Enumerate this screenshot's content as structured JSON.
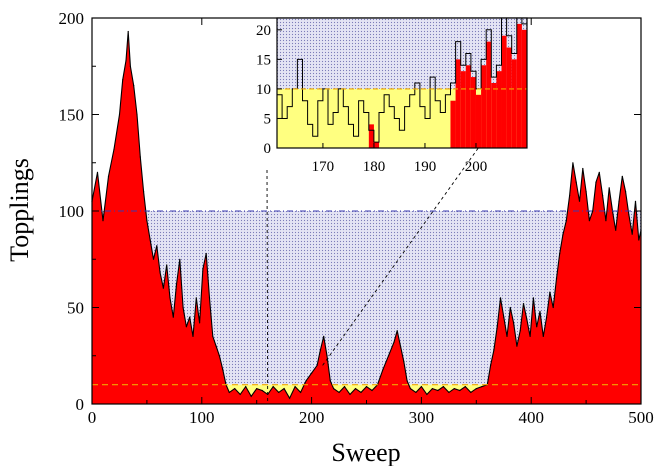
{
  "chart_data": [
    {
      "type": "area",
      "xlabel": "Sweep",
      "ylabel": "Topplings",
      "xlim": [
        0,
        500
      ],
      "ylim": [
        0,
        200
      ],
      "x_ticks": [
        0,
        100,
        200,
        300,
        400,
        500
      ],
      "y_ticks": [
        0,
        50,
        100,
        150,
        200
      ],
      "grid": false,
      "reference_lines": [
        {
          "y": 100,
          "style": "dash-dot",
          "color": "#3a3ab0"
        },
        {
          "y": 10,
          "style": "dashed",
          "color": "#f0a800"
        }
      ],
      "shaded_band": {
        "y_from": 10,
        "y_to": 100,
        "pattern": "dotted",
        "color": "#c8c8e6"
      },
      "low_band": {
        "y_from": 0,
        "y_to": 10,
        "color": "#ffff80"
      },
      "fill_color": "#ff0000",
      "line_color": "#000000",
      "envelope": [
        {
          "x": 0,
          "y": 105
        },
        {
          "x": 5,
          "y": 120
        },
        {
          "x": 10,
          "y": 95
        },
        {
          "x": 15,
          "y": 118
        },
        {
          "x": 20,
          "y": 132
        },
        {
          "x": 25,
          "y": 150
        },
        {
          "x": 28,
          "y": 168
        },
        {
          "x": 31,
          "y": 178
        },
        {
          "x": 33,
          "y": 193
        },
        {
          "x": 35,
          "y": 175
        },
        {
          "x": 38,
          "y": 165
        },
        {
          "x": 41,
          "y": 150
        },
        {
          "x": 44,
          "y": 128
        },
        {
          "x": 47,
          "y": 110
        },
        {
          "x": 50,
          "y": 95
        },
        {
          "x": 53,
          "y": 85
        },
        {
          "x": 56,
          "y": 75
        },
        {
          "x": 59,
          "y": 82
        },
        {
          "x": 62,
          "y": 68
        },
        {
          "x": 65,
          "y": 60
        },
        {
          "x": 68,
          "y": 72
        },
        {
          "x": 71,
          "y": 55
        },
        {
          "x": 74,
          "y": 45
        },
        {
          "x": 77,
          "y": 62
        },
        {
          "x": 80,
          "y": 75
        },
        {
          "x": 83,
          "y": 50
        },
        {
          "x": 86,
          "y": 40
        },
        {
          "x": 89,
          "y": 45
        },
        {
          "x": 92,
          "y": 35
        },
        {
          "x": 95,
          "y": 55
        },
        {
          "x": 98,
          "y": 42
        },
        {
          "x": 101,
          "y": 70
        },
        {
          "x": 104,
          "y": 78
        },
        {
          "x": 107,
          "y": 55
        },
        {
          "x": 110,
          "y": 35
        },
        {
          "x": 113,
          "y": 30
        },
        {
          "x": 116,
          "y": 25
        },
        {
          "x": 119,
          "y": 18
        },
        {
          "x": 122,
          "y": 10
        },
        {
          "x": 125,
          "y": 6
        },
        {
          "x": 130,
          "y": 8
        },
        {
          "x": 135,
          "y": 5
        },
        {
          "x": 140,
          "y": 9
        },
        {
          "x": 145,
          "y": 4
        },
        {
          "x": 150,
          "y": 8
        },
        {
          "x": 155,
          "y": 7
        },
        {
          "x": 160,
          "y": 5
        },
        {
          "x": 165,
          "y": 9
        },
        {
          "x": 170,
          "y": 6
        },
        {
          "x": 175,
          "y": 8
        },
        {
          "x": 180,
          "y": 3
        },
        {
          "x": 185,
          "y": 9
        },
        {
          "x": 190,
          "y": 6
        },
        {
          "x": 195,
          "y": 12
        },
        {
          "x": 200,
          "y": 16
        },
        {
          "x": 205,
          "y": 20
        },
        {
          "x": 208,
          "y": 28
        },
        {
          "x": 211,
          "y": 35
        },
        {
          "x": 214,
          "y": 25
        },
        {
          "x": 217,
          "y": 12
        },
        {
          "x": 220,
          "y": 8
        },
        {
          "x": 225,
          "y": 6
        },
        {
          "x": 230,
          "y": 9
        },
        {
          "x": 235,
          "y": 5
        },
        {
          "x": 240,
          "y": 8
        },
        {
          "x": 245,
          "y": 6
        },
        {
          "x": 250,
          "y": 9
        },
        {
          "x": 255,
          "y": 7
        },
        {
          "x": 260,
          "y": 10
        },
        {
          "x": 265,
          "y": 18
        },
        {
          "x": 270,
          "y": 25
        },
        {
          "x": 275,
          "y": 32
        },
        {
          "x": 278,
          "y": 38
        },
        {
          "x": 281,
          "y": 30
        },
        {
          "x": 284,
          "y": 22
        },
        {
          "x": 287,
          "y": 12
        },
        {
          "x": 290,
          "y": 8
        },
        {
          "x": 295,
          "y": 6
        },
        {
          "x": 300,
          "y": 9
        },
        {
          "x": 305,
          "y": 5
        },
        {
          "x": 310,
          "y": 8
        },
        {
          "x": 315,
          "y": 7
        },
        {
          "x": 320,
          "y": 9
        },
        {
          "x": 325,
          "y": 6
        },
        {
          "x": 330,
          "y": 8
        },
        {
          "x": 335,
          "y": 7
        },
        {
          "x": 340,
          "y": 9
        },
        {
          "x": 345,
          "y": 6
        },
        {
          "x": 350,
          "y": 8
        },
        {
          "x": 355,
          "y": 9
        },
        {
          "x": 360,
          "y": 10
        },
        {
          "x": 363,
          "y": 20
        },
        {
          "x": 366,
          "y": 28
        },
        {
          "x": 369,
          "y": 40
        },
        {
          "x": 372,
          "y": 55
        },
        {
          "x": 375,
          "y": 45
        },
        {
          "x": 378,
          "y": 35
        },
        {
          "x": 381,
          "y": 50
        },
        {
          "x": 384,
          "y": 42
        },
        {
          "x": 387,
          "y": 30
        },
        {
          "x": 390,
          "y": 38
        },
        {
          "x": 393,
          "y": 52
        },
        {
          "x": 396,
          "y": 44
        },
        {
          "x": 399,
          "y": 35
        },
        {
          "x": 402,
          "y": 55
        },
        {
          "x": 405,
          "y": 40
        },
        {
          "x": 408,
          "y": 48
        },
        {
          "x": 411,
          "y": 35
        },
        {
          "x": 414,
          "y": 45
        },
        {
          "x": 417,
          "y": 58
        },
        {
          "x": 420,
          "y": 50
        },
        {
          "x": 423,
          "y": 65
        },
        {
          "x": 426,
          "y": 78
        },
        {
          "x": 429,
          "y": 88
        },
        {
          "x": 432,
          "y": 95
        },
        {
          "x": 435,
          "y": 108
        },
        {
          "x": 438,
          "y": 125
        },
        {
          "x": 441,
          "y": 115
        },
        {
          "x": 444,
          "y": 105
        },
        {
          "x": 447,
          "y": 122
        },
        {
          "x": 450,
          "y": 110
        },
        {
          "x": 453,
          "y": 95
        },
        {
          "x": 456,
          "y": 100
        },
        {
          "x": 459,
          "y": 115
        },
        {
          "x": 462,
          "y": 120
        },
        {
          "x": 465,
          "y": 108
        },
        {
          "x": 468,
          "y": 95
        },
        {
          "x": 471,
          "y": 112
        },
        {
          "x": 474,
          "y": 100
        },
        {
          "x": 477,
          "y": 90
        },
        {
          "x": 480,
          "y": 105
        },
        {
          "x": 483,
          "y": 118
        },
        {
          "x": 486,
          "y": 110
        },
        {
          "x": 489,
          "y": 98
        },
        {
          "x": 492,
          "y": 88
        },
        {
          "x": 495,
          "y": 105
        },
        {
          "x": 498,
          "y": 85
        },
        {
          "x": 500,
          "y": 90
        }
      ]
    },
    {
      "type": "area",
      "role": "inset",
      "xlim": [
        161,
        210
      ],
      "ylim": [
        0,
        22
      ],
      "x_ticks": [
        170,
        180,
        190,
        200
      ],
      "y_ticks": [
        0,
        5,
        10,
        15,
        20
      ],
      "zoom_of_main_x": [
        160,
        210
      ],
      "reference_lines": [
        {
          "y": 10,
          "style": "dashed",
          "color": "#f0a800"
        }
      ],
      "low_band": {
        "y_from": 0,
        "y_to": 10,
        "color": "#ffff80"
      },
      "upper_band": {
        "y_from": 10,
        "y_to": 22,
        "pattern": "dotted",
        "color": "#c8c8e6"
      },
      "fill_color": "#ff0000",
      "steps": [
        {
          "x": 161,
          "y": 9
        },
        {
          "x": 162,
          "y": 5
        },
        {
          "x": 163,
          "y": 7
        },
        {
          "x": 164,
          "y": 10
        },
        {
          "x": 165,
          "y": 15
        },
        {
          "x": 166,
          "y": 8
        },
        {
          "x": 167,
          "y": 4
        },
        {
          "x": 168,
          "y": 2
        },
        {
          "x": 169,
          "y": 8
        },
        {
          "x": 170,
          "y": 10
        },
        {
          "x": 171,
          "y": 4
        },
        {
          "x": 172,
          "y": 6
        },
        {
          "x": 173,
          "y": 10
        },
        {
          "x": 174,
          "y": 7
        },
        {
          "x": 175,
          "y": 4
        },
        {
          "x": 176,
          "y": 2
        },
        {
          "x": 177,
          "y": 8
        },
        {
          "x": 178,
          "y": 6
        },
        {
          "x": 179,
          "y": 3
        },
        {
          "x": 180,
          "y": 1
        },
        {
          "x": 181,
          "y": 6
        },
        {
          "x": 182,
          "y": 9
        },
        {
          "x": 183,
          "y": 7
        },
        {
          "x": 184,
          "y": 5
        },
        {
          "x": 185,
          "y": 3
        },
        {
          "x": 186,
          "y": 7
        },
        {
          "x": 187,
          "y": 9
        },
        {
          "x": 188,
          "y": 11
        },
        {
          "x": 189,
          "y": 7
        },
        {
          "x": 190,
          "y": 5
        },
        {
          "x": 191,
          "y": 12
        },
        {
          "x": 192,
          "y": 8
        },
        {
          "x": 193,
          "y": 6
        },
        {
          "x": 194,
          "y": 9
        },
        {
          "x": 195,
          "y": 11
        },
        {
          "x": 196,
          "y": 18
        },
        {
          "x": 197,
          "y": 14
        },
        {
          "x": 198,
          "y": 16
        },
        {
          "x": 199,
          "y": 13
        },
        {
          "x": 200,
          "y": 10
        },
        {
          "x": 201,
          "y": 15
        },
        {
          "x": 202,
          "y": 20
        },
        {
          "x": 203,
          "y": 12
        },
        {
          "x": 204,
          "y": 14
        },
        {
          "x": 205,
          "y": 22
        },
        {
          "x": 206,
          "y": 19
        },
        {
          "x": 207,
          "y": 16
        },
        {
          "x": 208,
          "y": 22
        },
        {
          "x": 209,
          "y": 21
        }
      ],
      "red_steps": [
        {
          "x": 179,
          "y": 4
        },
        {
          "x": 180,
          "y": 1
        },
        {
          "x": 195,
          "y": 8
        },
        {
          "x": 196,
          "y": 15
        },
        {
          "x": 197,
          "y": 13
        },
        {
          "x": 198,
          "y": 14
        },
        {
          "x": 199,
          "y": 12
        },
        {
          "x": 200,
          "y": 9
        },
        {
          "x": 201,
          "y": 14
        },
        {
          "x": 202,
          "y": 18
        },
        {
          "x": 203,
          "y": 11
        },
        {
          "x": 204,
          "y": 13
        },
        {
          "x": 205,
          "y": 19
        },
        {
          "x": 206,
          "y": 17
        },
        {
          "x": 207,
          "y": 15
        },
        {
          "x": 208,
          "y": 21
        },
        {
          "x": 209,
          "y": 20
        }
      ]
    }
  ]
}
